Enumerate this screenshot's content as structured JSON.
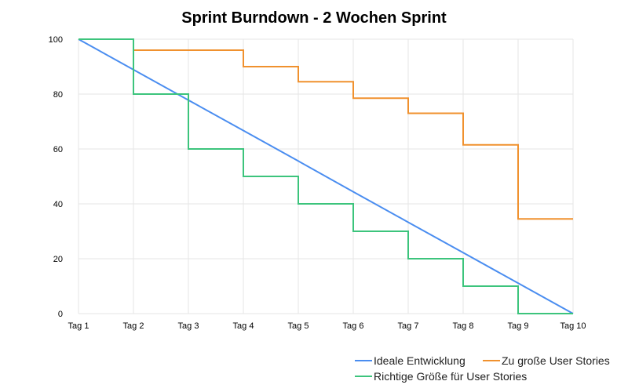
{
  "chart_data": {
    "type": "line",
    "title": "Sprint Burndown - 2 Wochen Sprint",
    "xlabel": "",
    "ylabel": "",
    "categories": [
      "Tag 1",
      "Tag 2",
      "Tag 3",
      "Tag 4",
      "Tag 5",
      "Tag 6",
      "Tag 7",
      "Tag 8",
      "Tag 9",
      "Tag 10"
    ],
    "ylim": [
      0,
      100
    ],
    "yticks": [
      0,
      20,
      40,
      60,
      80,
      100
    ],
    "grid": true,
    "legend_position": "bottom-right",
    "series": [
      {
        "name": "Ideale Entwicklung",
        "color": "#4a8df0",
        "style": "straight",
        "values": [
          100,
          88.9,
          77.8,
          66.7,
          55.6,
          44.4,
          33.3,
          22.2,
          11.1,
          0
        ]
      },
      {
        "name": "Zu große User Stories",
        "color": "#f0912e",
        "style": "step",
        "values": [
          100,
          96,
          96,
          90,
          84.5,
          78.5,
          73,
          61.5,
          34.5,
          34.5
        ]
      },
      {
        "name": "Richtige Größe für User Stories",
        "color": "#3cc47c",
        "style": "step",
        "values": [
          100,
          80,
          60,
          50,
          40,
          30,
          20,
          10,
          0,
          0
        ]
      }
    ]
  }
}
